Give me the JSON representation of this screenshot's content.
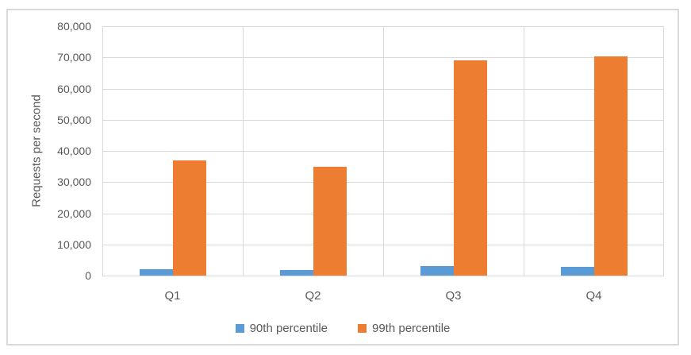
{
  "colors": {
    "series_blue": "#5B9BD5",
    "series_orange": "#ED7D31",
    "gridline": "#D9D9D9",
    "axis_text": "#595959",
    "frame_border": "#D9D9D9",
    "background": "#FFFFFF"
  },
  "chart_data": {
    "type": "bar",
    "title": "",
    "xlabel": "",
    "ylabel": "Requests per second",
    "categories": [
      "Q1",
      "Q2",
      "Q3",
      "Q4"
    ],
    "series": [
      {
        "name": "90th percentile",
        "color": "#5B9BD5",
        "values": [
          2000,
          1700,
          3000,
          2800
        ]
      },
      {
        "name": "99th percentile",
        "color": "#ED7D31",
        "values": [
          37000,
          35000,
          69000,
          70300
        ]
      }
    ],
    "ylim": [
      0,
      80000
    ],
    "ytick_step": 10000,
    "ytick_labels": [
      "0",
      "10,000",
      "20,000",
      "30,000",
      "40,000",
      "50,000",
      "60,000",
      "70,000",
      "80,000"
    ],
    "grid": true,
    "vertical_gridlines": true,
    "legend_position": "bottom"
  }
}
